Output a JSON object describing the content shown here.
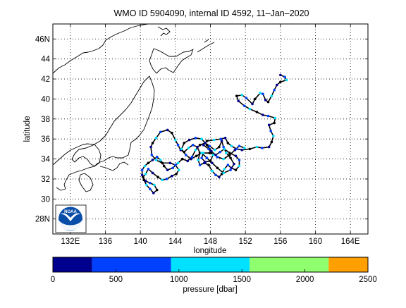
{
  "title": "WMO ID 5904090, internal ID 4592, 11–Jan–2020",
  "logo_text": "NOAA",
  "chart_data": {
    "type": "scatter",
    "title": "WMO ID 5904090, internal ID 4592, 11–Jan–2020",
    "xlabel": "longitude",
    "ylabel": "latitude",
    "xlim": [
      130,
      166
    ],
    "ylim": [
      26.5,
      47.5
    ],
    "grid": true,
    "x_ticks": [
      132,
      136,
      140,
      144,
      148,
      152,
      156,
      160,
      164
    ],
    "x_tick_labels": [
      "132E",
      "136",
      "140",
      "144",
      "148",
      "152",
      "156",
      "160",
      "164E"
    ],
    "y_ticks": [
      28,
      30,
      32,
      34,
      36,
      38,
      40,
      42,
      44,
      46
    ],
    "y_tick_labels": [
      "28N",
      "30",
      "32",
      "34",
      "36",
      "38",
      "40",
      "42",
      "44",
      "46N"
    ],
    "track_color": "#000000",
    "track": [
      [
        156.0,
        42.4
      ],
      [
        156.5,
        42.2
      ],
      [
        156.7,
        41.9
      ],
      [
        156.0,
        41.7
      ],
      [
        155.6,
        41.4
      ],
      [
        155.3,
        40.9
      ],
      [
        155.0,
        40.3
      ],
      [
        154.6,
        39.7
      ],
      [
        154.3,
        39.9
      ],
      [
        154.0,
        40.5
      ],
      [
        153.7,
        40.6
      ],
      [
        153.1,
        40.0
      ],
      [
        152.8,
        39.5
      ],
      [
        152.1,
        40.1
      ],
      [
        151.6,
        40.4
      ],
      [
        151.0,
        40.3
      ],
      [
        151.2,
        39.8
      ],
      [
        151.9,
        39.3
      ],
      [
        152.5,
        39.0
      ],
      [
        153.3,
        38.7
      ],
      [
        154.0,
        38.4
      ],
      [
        154.6,
        38.3
      ],
      [
        155.4,
        38.1
      ],
      [
        155.3,
        37.6
      ],
      [
        154.7,
        37.4
      ],
      [
        154.9,
        36.8
      ],
      [
        155.2,
        36.3
      ],
      [
        155.0,
        35.7
      ],
      [
        154.7,
        35.2
      ],
      [
        153.9,
        35.1
      ],
      [
        153.3,
        35.2
      ],
      [
        152.5,
        35.0
      ],
      [
        151.6,
        34.9
      ],
      [
        151.0,
        35.0
      ],
      [
        150.4,
        35.3
      ],
      [
        150.0,
        35.6
      ],
      [
        149.7,
        36.1
      ],
      [
        149.2,
        36.0
      ],
      [
        148.4,
        35.9
      ],
      [
        147.6,
        35.8
      ],
      [
        147.2,
        35.4
      ],
      [
        147.8,
        35.0
      ],
      [
        148.3,
        34.4
      ],
      [
        148.0,
        33.8
      ],
      [
        147.4,
        33.7
      ],
      [
        147.0,
        34.1
      ],
      [
        147.2,
        34.6
      ],
      [
        147.9,
        34.6
      ],
      [
        148.6,
        34.4
      ],
      [
        149.1,
        34.7
      ],
      [
        149.6,
        35.0
      ],
      [
        150.2,
        34.6
      ],
      [
        150.9,
        34.3
      ],
      [
        151.3,
        33.9
      ],
      [
        151.3,
        33.3
      ],
      [
        150.9,
        32.9
      ],
      [
        150.4,
        33.1
      ],
      [
        150.0,
        33.4
      ],
      [
        149.6,
        33.0
      ],
      [
        149.3,
        32.5
      ],
      [
        149.0,
        32.2
      ],
      [
        148.6,
        32.4
      ],
      [
        148.2,
        32.8
      ],
      [
        147.8,
        33.4
      ],
      [
        147.3,
        33.6
      ],
      [
        146.8,
        33.4
      ],
      [
        146.6,
        33.9
      ],
      [
        146.8,
        34.6
      ],
      [
        146.5,
        35.2
      ],
      [
        146.0,
        35.4
      ],
      [
        145.5,
        35.1
      ],
      [
        145.0,
        34.7
      ],
      [
        144.6,
        34.9
      ],
      [
        144.3,
        35.4
      ],
      [
        144.0,
        35.9
      ],
      [
        143.6,
        36.6
      ],
      [
        143.1,
        36.9
      ],
      [
        142.3,
        36.7
      ],
      [
        141.8,
        36.1
      ],
      [
        141.4,
        35.6
      ],
      [
        141.2,
        35.2
      ],
      [
        141.3,
        34.4
      ],
      [
        141.8,
        33.9
      ],
      [
        142.5,
        33.6
      ],
      [
        143.4,
        33.6
      ],
      [
        144.0,
        33.4
      ],
      [
        144.4,
        32.9
      ],
      [
        144.1,
        32.5
      ],
      [
        143.6,
        32.3
      ],
      [
        143.0,
        32.0
      ],
      [
        142.5,
        31.9
      ],
      [
        142.0,
        32.2
      ],
      [
        141.4,
        32.6
      ],
      [
        140.9,
        33.0
      ],
      [
        140.6,
        32.5
      ],
      [
        140.3,
        32.2
      ],
      [
        140.6,
        31.8
      ],
      [
        141.1,
        31.6
      ],
      [
        141.6,
        31.4
      ],
      [
        141.9,
        30.9
      ],
      [
        141.5,
        30.6
      ],
      [
        141.1,
        31.0
      ],
      [
        140.7,
        31.4
      ],
      [
        140.4,
        31.9
      ],
      [
        140.2,
        32.4
      ],
      [
        140.2,
        32.9
      ],
      [
        140.5,
        33.3
      ],
      [
        140.9,
        33.6
      ],
      [
        141.4,
        33.9
      ],
      [
        141.9,
        34.2
      ],
      [
        142.3,
        33.9
      ],
      [
        142.7,
        33.3
      ],
      [
        143.1,
        32.9
      ],
      [
        143.7,
        33.1
      ],
      [
        144.3,
        33.6
      ],
      [
        144.8,
        34.0
      ],
      [
        145.4,
        33.8
      ],
      [
        145.9,
        34.2
      ],
      [
        146.3,
        34.9
      ],
      [
        146.8,
        35.4
      ],
      [
        147.4,
        35.6
      ],
      [
        147.9,
        35.3
      ],
      [
        148.5,
        34.9
      ],
      [
        149.0,
        35.2
      ],
      [
        149.3,
        35.8
      ],
      [
        149.5,
        35.2
      ],
      [
        149.8,
        34.6
      ],
      [
        150.3,
        34.1
      ],
      [
        150.7,
        33.5
      ],
      [
        150.3,
        32.9
      ],
      [
        149.5,
        32.6
      ],
      [
        148.8,
        33.1
      ],
      [
        148.2,
        33.6
      ],
      [
        147.6,
        34.1
      ],
      [
        147.0,
        34.6
      ],
      [
        146.4,
        34.3
      ],
      [
        145.8,
        34.0
      ],
      [
        145.2,
        34.4
      ],
      [
        144.7,
        35.0
      ],
      [
        145.0,
        35.6
      ],
      [
        145.6,
        35.9
      ],
      [
        146.3,
        36.1
      ],
      [
        147.0,
        36.0
      ],
      [
        147.6,
        35.4
      ],
      [
        148.1,
        34.8
      ],
      [
        148.8,
        34.2
      ],
      [
        149.5,
        34.0
      ],
      [
        150.2,
        34.4
      ],
      [
        150.8,
        34.9
      ],
      [
        151.3,
        35.3
      ],
      [
        151.9,
        35.1
      ]
    ],
    "colorbar": {
      "label": "pressure [dbar]",
      "ticks": [
        0,
        500,
        1000,
        1500,
        2000,
        2500
      ],
      "min": 0,
      "max": 2500,
      "bins": [
        {
          "from": 0,
          "to": 312,
          "color": "#00008f"
        },
        {
          "from": 312,
          "to": 938,
          "color": "#0040ff"
        },
        {
          "from": 938,
          "to": 1562,
          "color": "#00e0ff"
        },
        {
          "from": 1562,
          "to": 2188,
          "color": "#8fff6f"
        },
        {
          "from": 2188,
          "to": 2500,
          "color": "#ffa000"
        }
      ]
    }
  }
}
